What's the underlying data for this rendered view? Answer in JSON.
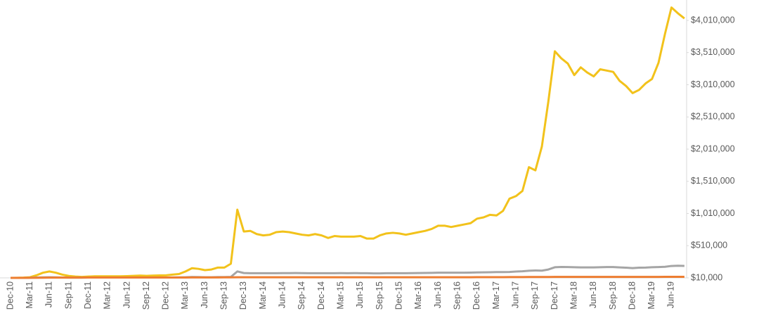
{
  "chart_data": {
    "type": "line",
    "categories": [
      "Dec-10",
      null,
      null,
      "Mar-11",
      null,
      null,
      "Jun-11",
      null,
      null,
      "Sep-11",
      null,
      null,
      "Dec-11",
      null,
      null,
      "Mar-12",
      null,
      null,
      "Jun-12",
      null,
      null,
      "Sep-12",
      null,
      null,
      "Dec-12",
      null,
      null,
      "Mar-13",
      null,
      null,
      "Jun-13",
      null,
      null,
      "Sep-13",
      null,
      null,
      "Dec-13",
      null,
      null,
      "Mar-14",
      null,
      null,
      "Jun-14",
      null,
      null,
      "Sep-14",
      null,
      null,
      "Dec-14",
      null,
      null,
      "Mar-15",
      null,
      null,
      "Jun-15",
      null,
      null,
      "Sep-15",
      null,
      null,
      "Dec-15",
      null,
      null,
      "Mar-16",
      null,
      null,
      "Jun-16",
      null,
      null,
      "Sep-16",
      null,
      null,
      "Dec-16",
      null,
      null,
      "Mar-17",
      null,
      null,
      "Jun-17",
      null,
      null,
      "Sep-17",
      null,
      null,
      "Dec-17",
      null,
      null,
      "Mar-18",
      null,
      null,
      "Jun-18",
      null,
      null,
      "Sep-18",
      null,
      null,
      "Dec-18",
      null,
      null,
      "Mar-19",
      null,
      null,
      "Jun-19",
      null,
      null
    ],
    "series": [
      {
        "color": "#ed7d31",
        "values": [
          10000,
          10000,
          10000,
          11000,
          12000,
          13000,
          14000,
          14000,
          14000,
          14000,
          14000,
          14000,
          15000,
          15000,
          15000,
          15000,
          15000,
          15000,
          15000,
          15000,
          15000,
          15000,
          15000,
          15000,
          16000,
          16000,
          16000,
          16000,
          17000,
          17000,
          17000,
          17000,
          17000,
          18000,
          18000,
          20000,
          20000,
          20000,
          20000,
          20000,
          20000,
          20000,
          20000,
          20000,
          20000,
          20000,
          20000,
          20000,
          20000,
          20000,
          20000,
          20000,
          20000,
          20000,
          20000,
          20000,
          20000,
          20000,
          20000,
          20000,
          20000,
          20000,
          20000,
          20000,
          20000,
          20000,
          20000,
          20000,
          20000,
          20000,
          20000,
          20000,
          21000,
          21000,
          21000,
          21000,
          21000,
          22000,
          22000,
          22000,
          23000,
          23000,
          24000,
          24000,
          25000,
          25000,
          25000,
          25000,
          25000,
          25000,
          25000,
          25000,
          25000,
          25000,
          25000,
          25000,
          25000,
          25000,
          25000,
          25000,
          25000,
          26000,
          26000,
          26000,
          26000
        ]
      },
      {
        "color": "#a5a5a5",
        "values": [
          10000,
          10000,
          10000,
          12000,
          15000,
          18000,
          20000,
          18000,
          15000,
          14000,
          14000,
          14000,
          15000,
          15000,
          15000,
          15000,
          15000,
          15000,
          15000,
          15000,
          15000,
          15000,
          15000,
          15000,
          16000,
          17000,
          18000,
          20000,
          24000,
          22000,
          20000,
          20000,
          22000,
          22000,
          25000,
          110000,
          85000,
          82000,
          82000,
          82000,
          82000,
          83000,
          84000,
          84000,
          85000,
          84000,
          83000,
          83000,
          82000,
          82000,
          83000,
          84000,
          83000,
          84000,
          83000,
          82000,
          80000,
          80000,
          82000,
          82000,
          82000,
          83000,
          84000,
          85000,
          86000,
          88000,
          90000,
          90000,
          90000,
          90000,
          90000,
          92000,
          94000,
          96000,
          98000,
          100000,
          100000,
          102000,
          108000,
          112000,
          120000,
          125000,
          122000,
          140000,
          175000,
          180000,
          178000,
          175000,
          172000,
          172000,
          172000,
          175000,
          178000,
          178000,
          172000,
          168000,
          162000,
          168000,
          170000,
          175000,
          178000,
          182000,
          195000,
          198000,
          196000
        ]
      },
      {
        "color": "#f2c21b",
        "values": [
          10000,
          12000,
          14000,
          20000,
          50000,
          90000,
          110000,
          90000,
          60000,
          40000,
          30000,
          25000,
          30000,
          35000,
          35000,
          35000,
          35000,
          35000,
          38000,
          42000,
          45000,
          42000,
          45000,
          48000,
          50000,
          60000,
          70000,
          110000,
          160000,
          150000,
          130000,
          140000,
          170000,
          170000,
          230000,
          1070000,
          730000,
          740000,
          690000,
          670000,
          680000,
          720000,
          730000,
          720000,
          700000,
          680000,
          670000,
          690000,
          670000,
          630000,
          660000,
          650000,
          650000,
          650000,
          660000,
          620000,
          620000,
          670000,
          700000,
          710000,
          700000,
          680000,
          700000,
          720000,
          740000,
          770000,
          820000,
          820000,
          800000,
          820000,
          840000,
          860000,
          930000,
          950000,
          990000,
          980000,
          1050000,
          1240000,
          1280000,
          1360000,
          1730000,
          1680000,
          2050000,
          2750000,
          3530000,
          3420000,
          3340000,
          3160000,
          3280000,
          3200000,
          3140000,
          3250000,
          3230000,
          3210000,
          3070000,
          2990000,
          2880000,
          2930000,
          3030000,
          3100000,
          3350000,
          3800000,
          4210000,
          4120000,
          4040000
        ]
      }
    ],
    "ylim": [
      10000,
      4310000
    ],
    "yticks": [
      {
        "value": 10000,
        "label": "$10,000"
      },
      {
        "value": 510000,
        "label": "$510,000"
      },
      {
        "value": 1010000,
        "label": "$1,010,000"
      },
      {
        "value": 1510000,
        "label": "$1,510,000"
      },
      {
        "value": 2010000,
        "label": "$2,010,000"
      },
      {
        "value": 2510000,
        "label": "$2,510,000"
      },
      {
        "value": 3010000,
        "label": "$3,010,000"
      },
      {
        "value": 3510000,
        "label": "$3,510,000"
      },
      {
        "value": 4010000,
        "label": "$4,010,000"
      }
    ],
    "grid": false
  }
}
